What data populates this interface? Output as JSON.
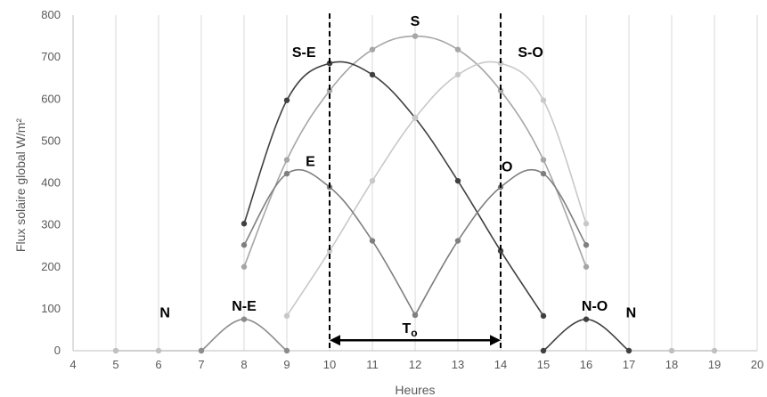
{
  "chart_data": {
    "type": "line",
    "xlabel": "Heures",
    "ylabel": "Flux solaire global W/m²",
    "xlim": [
      4,
      20
    ],
    "ylim": [
      0,
      800
    ],
    "x_ticks": [
      "4",
      "5",
      "6",
      "7",
      "8",
      "9",
      "10",
      "11",
      "12",
      "13",
      "14",
      "15",
      "16",
      "17",
      "18",
      "19",
      "20"
    ],
    "y_ticks": [
      "0",
      "100",
      "200",
      "300",
      "400",
      "500",
      "600",
      "700",
      "800"
    ],
    "grid": "vertical",
    "legend": "none",
    "series": [
      {
        "name": "S",
        "color": "#a6a6a6",
        "points": [
          [
            8,
            200
          ],
          [
            9,
            455
          ],
          [
            10,
            620
          ],
          [
            11,
            718
          ],
          [
            12,
            750
          ],
          [
            13,
            718
          ],
          [
            14,
            620
          ],
          [
            15,
            455
          ],
          [
            16,
            200
          ]
        ]
      },
      {
        "name": "S-E",
        "color": "#404040",
        "points": [
          [
            8,
            303
          ],
          [
            9,
            597
          ],
          [
            10,
            685
          ],
          [
            11,
            658
          ],
          [
            12,
            555
          ],
          [
            13,
            405
          ],
          [
            14,
            238
          ],
          [
            15,
            83
          ]
        ]
      },
      {
        "name": "S-O",
        "color": "#c8c8c8",
        "points": [
          [
            9,
            83
          ],
          [
            10,
            238
          ],
          [
            11,
            405
          ],
          [
            12,
            555
          ],
          [
            13,
            658
          ],
          [
            14,
            685
          ],
          [
            15,
            597
          ],
          [
            16,
            303
          ]
        ]
      },
      {
        "name": "E",
        "color": "#7f7f7f",
        "points": [
          [
            8,
            252
          ],
          [
            9,
            422
          ],
          [
            10,
            390
          ],
          [
            11,
            262
          ],
          [
            12,
            85
          ]
        ]
      },
      {
        "name": "O",
        "color": "#7f7f7f",
        "points": [
          [
            12,
            85
          ],
          [
            13,
            262
          ],
          [
            14,
            390
          ],
          [
            15,
            422
          ],
          [
            16,
            252
          ]
        ]
      },
      {
        "name": "N",
        "color": "#c0c0c0",
        "points": [
          [
            5,
            0
          ],
          [
            6,
            0
          ],
          [
            7,
            0
          ],
          [
            17,
            0
          ],
          [
            18,
            0
          ],
          [
            19,
            0
          ]
        ]
      },
      {
        "name": "N-E",
        "color": "#8c8c8c",
        "points": [
          [
            7,
            0
          ],
          [
            8,
            75
          ],
          [
            9,
            0
          ]
        ]
      },
      {
        "name": "N-O",
        "color": "#404040",
        "points": [
          [
            15,
            0
          ],
          [
            16,
            75
          ],
          [
            17,
            0
          ]
        ]
      }
    ],
    "annotations": {
      "labels": [
        {
          "text": "S",
          "x": 12,
          "y": 775
        },
        {
          "text": "S-E",
          "x": 9.4,
          "y": 700
        },
        {
          "text": "S-O",
          "x": 14.7,
          "y": 700
        },
        {
          "text": "E",
          "x": 9.55,
          "y": 440
        },
        {
          "text": "O",
          "x": 14.15,
          "y": 428
        },
        {
          "text": "N",
          "x": 6.15,
          "y": 80
        },
        {
          "text": "N-E",
          "x": 8,
          "y": 95
        },
        {
          "text": "N-O",
          "x": 16.2,
          "y": 95
        },
        {
          "text": "N",
          "x": 17.05,
          "y": 80
        }
      ],
      "vlines": [
        10,
        14
      ],
      "arrow": {
        "x_start": 10,
        "x_end": 14,
        "y": 25
      },
      "period_label": {
        "text": "T",
        "sub": "o"
      }
    }
  }
}
